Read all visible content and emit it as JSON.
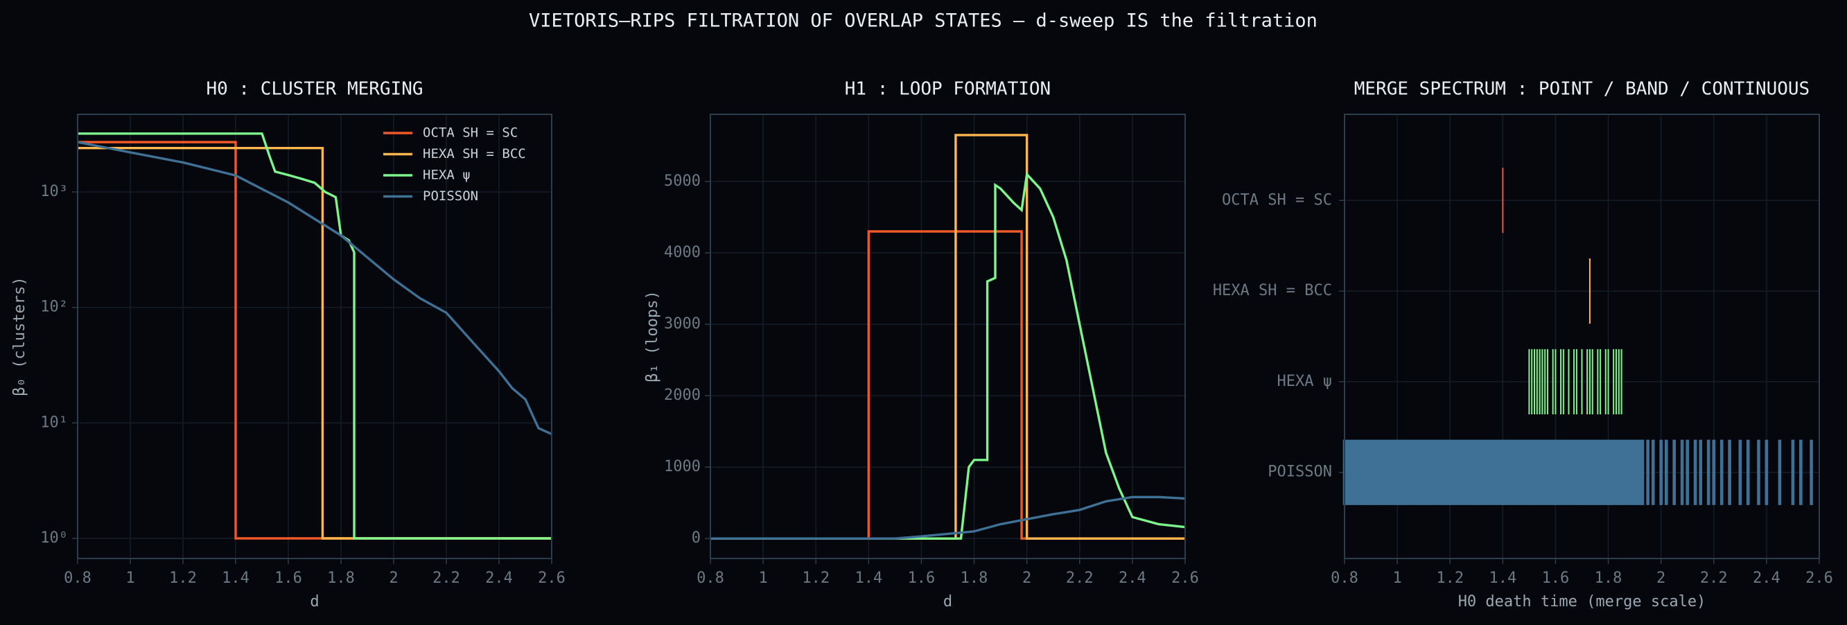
{
  "title": "VIETORIS–RIPS FILTRATION OF OVERLAP STATES — d-sweep IS the filtration",
  "chart_data": [
    {
      "type": "line",
      "title": "H0 : CLUSTER MERGING",
      "xlabel": "d",
      "ylabel": "β₀  (clusters)",
      "xlim": [
        0.8,
        2.6
      ],
      "xticks": [
        0.8,
        1.0,
        1.2,
        1.4,
        1.6,
        1.8,
        2.0,
        2.2,
        2.4,
        2.6
      ],
      "ylim": [
        0.67,
        4700
      ],
      "yscale": "log",
      "yticks": [
        {
          "value": 1,
          "label": "10⁰"
        },
        {
          "value": 10,
          "label": "10¹"
        },
        {
          "value": 100,
          "label": "10²"
        },
        {
          "value": 1000,
          "label": "10³"
        }
      ],
      "grid": true,
      "legend": "upper right",
      "series": [
        {
          "name": "OCTA SH = SC",
          "color": "#f0582a",
          "x": [
            0.8,
            1.4,
            1.4,
            2.6
          ],
          "values": [
            2700,
            2700,
            1,
            1
          ]
        },
        {
          "name": "HEXA SH = BCC",
          "color": "#ffb74d",
          "x": [
            0.8,
            1.73,
            1.73,
            2.6
          ],
          "values": [
            2400,
            2400,
            1,
            1
          ]
        },
        {
          "name": "HEXA ψ",
          "color": "#7ef58c",
          "x": [
            0.8,
            1.5,
            1.53,
            1.55,
            1.6,
            1.65,
            1.7,
            1.74,
            1.76,
            1.78,
            1.8,
            1.83,
            1.85,
            1.85,
            2.6
          ],
          "values": [
            3200,
            3200,
            2000,
            1500,
            1400,
            1300,
            1200,
            1000,
            950,
            900,
            420,
            380,
            300,
            1,
            1
          ]
        },
        {
          "name": "POISSON",
          "color": "#3f7196",
          "x": [
            0.8,
            1.0,
            1.2,
            1.4,
            1.6,
            1.8,
            2.0,
            2.1,
            2.2,
            2.3,
            2.4,
            2.45,
            2.5,
            2.55,
            2.6
          ],
          "values": [
            2700,
            2200,
            1800,
            1390,
            810,
            420,
            175,
            120,
            90,
            50,
            28,
            20,
            16,
            9,
            8
          ]
        }
      ]
    },
    {
      "type": "line",
      "title": "H1 : LOOP FORMATION",
      "xlabel": "d",
      "ylabel": "β₁  (loops)",
      "xlim": [
        0.8,
        2.6
      ],
      "xticks": [
        0.8,
        1.0,
        1.2,
        1.4,
        1.6,
        1.8,
        2.0,
        2.2,
        2.4,
        2.6
      ],
      "ylim": [
        -280,
        5940
      ],
      "yticks": [
        0,
        1000,
        2000,
        3000,
        4000,
        5000
      ],
      "grid": true,
      "series": [
        {
          "color": "#f0582a",
          "x": [
            0.8,
            1.4,
            1.4,
            1.98,
            1.98,
            2.6
          ],
          "values": [
            0,
            0,
            4300,
            4300,
            0,
            0
          ]
        },
        {
          "color": "#ffb74d",
          "x": [
            0.8,
            1.73,
            1.73,
            2.0,
            2.0,
            2.6
          ],
          "values": [
            0,
            0,
            5650,
            5650,
            0,
            0
          ]
        },
        {
          "color": "#7ef58c",
          "x": [
            0.8,
            1.75,
            1.78,
            1.8,
            1.85,
            1.85,
            1.88,
            1.88,
            1.9,
            1.95,
            1.98,
            2.0,
            2.05,
            2.1,
            2.15,
            2.2,
            2.25,
            2.3,
            2.35,
            2.4,
            2.45,
            2.5,
            2.55,
            2.6
          ],
          "values": [
            0,
            0,
            1000,
            1100,
            1100,
            3600,
            3650,
            4950,
            4900,
            4700,
            4600,
            5100,
            4900,
            4500,
            3900,
            3000,
            2100,
            1200,
            700,
            300,
            250,
            200,
            180,
            160
          ]
        },
        {
          "color": "#3f7196",
          "x": [
            0.8,
            1.5,
            1.6,
            1.8,
            1.9,
            2.0,
            2.1,
            2.2,
            2.3,
            2.4,
            2.5,
            2.6
          ],
          "values": [
            0,
            0,
            30,
            100,
            200,
            270,
            340,
            400,
            520,
            580,
            580,
            560
          ]
        }
      ]
    },
    {
      "type": "event",
      "title": "MERGE SPECTRUM : POINT / BAND / CONTINUOUS",
      "xlabel": "H0 death time  (merge scale)",
      "xlim": [
        0.8,
        2.6
      ],
      "xticks": [
        0.8,
        1.0,
        1.2,
        1.4,
        1.6,
        1.8,
        2.0,
        2.2,
        2.4,
        2.6
      ],
      "grid": true,
      "categories": [
        "OCTA SH = SC",
        "HEXA SH = BCC",
        "HEXA ψ",
        "POISSON"
      ],
      "colors": [
        "#f0582a",
        "#ffb74d",
        "#7ef58c",
        "#3f7196"
      ],
      "values": [
        [
          1.4
        ],
        [
          1.73
        ],
        [
          1.5,
          1.51,
          1.52,
          1.53,
          1.54,
          1.55,
          1.56,
          1.57,
          1.59,
          1.6,
          1.62,
          1.63,
          1.65,
          1.67,
          1.68,
          1.7,
          1.72,
          1.73,
          1.74,
          1.76,
          1.77,
          1.79,
          1.8,
          1.82,
          1.83,
          1.84,
          1.85
        ],
        [
          0.8,
          0.81,
          0.82,
          0.83,
          0.84,
          0.85,
          0.86,
          0.87,
          0.88,
          0.89,
          0.9,
          0.91,
          0.92,
          0.93,
          0.94,
          0.95,
          0.96,
          0.97,
          0.98,
          0.99,
          1.0,
          1.01,
          1.02,
          1.03,
          1.04,
          1.05,
          1.06,
          1.07,
          1.08,
          1.09,
          1.1,
          1.11,
          1.12,
          1.13,
          1.14,
          1.15,
          1.16,
          1.17,
          1.18,
          1.19,
          1.2,
          1.21,
          1.22,
          1.23,
          1.24,
          1.25,
          1.26,
          1.27,
          1.28,
          1.29,
          1.3,
          1.31,
          1.32,
          1.33,
          1.34,
          1.35,
          1.36,
          1.37,
          1.38,
          1.39,
          1.4,
          1.41,
          1.42,
          1.43,
          1.44,
          1.45,
          1.46,
          1.47,
          1.48,
          1.49,
          1.5,
          1.51,
          1.52,
          1.53,
          1.54,
          1.55,
          1.56,
          1.57,
          1.58,
          1.59,
          1.6,
          1.61,
          1.62,
          1.63,
          1.64,
          1.65,
          1.66,
          1.67,
          1.68,
          1.69,
          1.7,
          1.71,
          1.72,
          1.73,
          1.74,
          1.75,
          1.76,
          1.77,
          1.78,
          1.79,
          1.8,
          1.81,
          1.82,
          1.83,
          1.84,
          1.85,
          1.86,
          1.87,
          1.88,
          1.89,
          1.9,
          1.91,
          1.92,
          1.93,
          1.95,
          1.97,
          2.0,
          2.02,
          2.05,
          2.08,
          2.1,
          2.13,
          2.15,
          2.18,
          2.2,
          2.23,
          2.26,
          2.3,
          2.33,
          2.37,
          2.4,
          2.45,
          2.5,
          2.53,
          2.57
        ]
      ]
    }
  ]
}
